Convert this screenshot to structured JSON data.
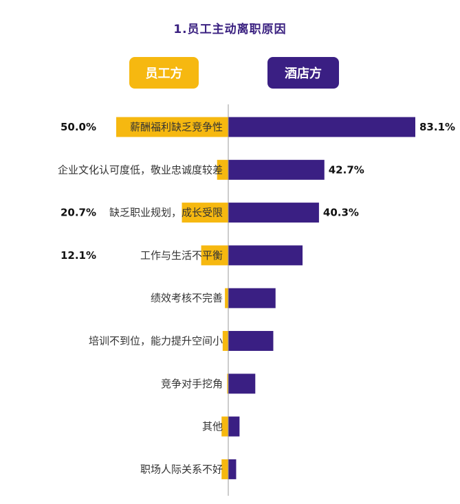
{
  "title": "1.员工主动离职原因",
  "legend": {
    "employee": "员工方",
    "hotel": "酒店方"
  },
  "colors": {
    "employee": "#f6b810",
    "hotel": "#3a1f83",
    "axis": "#999999"
  },
  "chart_data": {
    "type": "bar",
    "categories": [
      "薪酬福利缺乏竞争性",
      "企业文化认可度低，敬业忠诚度较差",
      "缺乏职业规划，成长受限",
      "工作与生活不平衡",
      "绩效考核不完善",
      "培训不到位，能力提升空间小",
      "竞争对手挖角",
      "其他",
      "职场人际关系不好"
    ],
    "series": [
      {
        "name": "员工方",
        "values": [
          50.0,
          5.0,
          20.7,
          12.1,
          1.5,
          2.5,
          0.5,
          3.0,
          3.0
        ],
        "labels": [
          "50.0%",
          "",
          "20.7%",
          "12.1%",
          "",
          "",
          "",
          "",
          ""
        ]
      },
      {
        "name": "酒店方",
        "values": [
          83.1,
          42.7,
          40.3,
          33.0,
          21.0,
          20.0,
          12.0,
          5.0,
          3.5
        ],
        "labels": [
          "83.1%",
          "42.7%",
          "40.3%",
          "",
          "",
          "",
          "",
          "",
          ""
        ]
      }
    ]
  }
}
